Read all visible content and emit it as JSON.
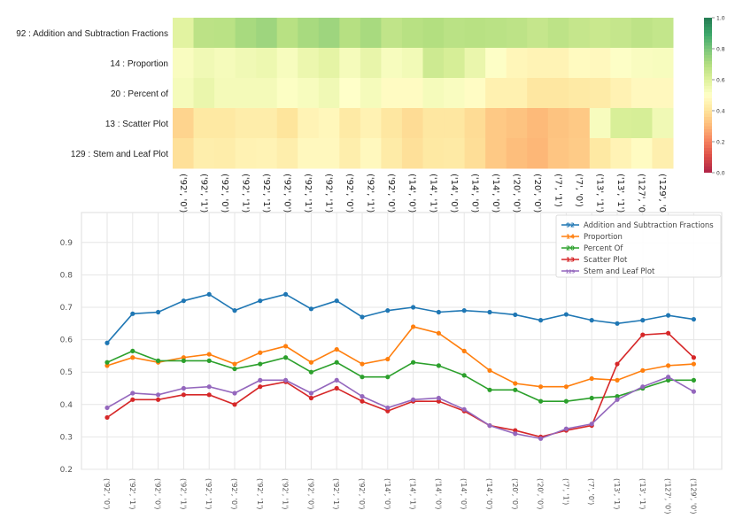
{
  "chart_data": [
    {
      "type": "heatmap",
      "colormap": "RdYlGn",
      "vlim": [
        0.0,
        1.0
      ],
      "colorbar_ticks": [
        "0.0",
        "0.2",
        "0.4",
        "0.6",
        "0.8",
        "1.0"
      ],
      "row_labels": [
        "92 : Addition and Subtraction Fractions",
        "14 : Proportion",
        "20 : Percent of",
        "13 : Scatter Plot",
        "129 : Stem and Leaf Plot"
      ],
      "col_labels": [
        "('92', '0')",
        "('92', '1')",
        "('92', '0')",
        "('92', '1')",
        "('92', '1')",
        "('92', '0')",
        "('92', '1')",
        "('92', '1')",
        "('92', '0')",
        "('92', '1')",
        "('92', '0')",
        "('14', '0')",
        "('14', '1')",
        "('14', '0')",
        "('14', '0')",
        "('14', '0')",
        "('20', '0')",
        "('20', '0')",
        "('7', '1')",
        "('7', '0')",
        "('13', '1')",
        "('13', '1')",
        "('127', '0')",
        "('129', '0')"
      ],
      "values_ref": "same as line chart series values"
    },
    {
      "type": "line",
      "ylim": [
        0.2,
        0.95
      ],
      "yticks": [
        "0.2",
        "0.3",
        "0.4",
        "0.5",
        "0.6",
        "0.7",
        "0.8",
        "0.9"
      ],
      "grid": true,
      "legend": "top-right",
      "categories": [
        "('92', '0')",
        "('92', '1')",
        "('92', '0')",
        "('92', '1')",
        "('92', '1')",
        "('92', '0')",
        "('92', '1')",
        "('92', '1')",
        "('92', '0')",
        "('92', '1')",
        "('92', '0')",
        "('14', '0')",
        "('14', '1')",
        "('14', '0')",
        "('14', '0')",
        "('14', '0')",
        "('20', '0')",
        "('20', '0')",
        "('7', '1')",
        "('7', '0')",
        "('13', '1')",
        "('13', '1')",
        "('127', '0')",
        "('129', '0')"
      ],
      "series": [
        {
          "name": "Addition and Subtraction Fractions",
          "marker": "92",
          "color": "#1f77b4",
          "values": [
            0.59,
            0.68,
            0.685,
            0.72,
            0.74,
            0.69,
            0.72,
            0.74,
            0.695,
            0.72,
            0.67,
            0.69,
            0.7,
            0.685,
            0.69,
            0.685,
            0.677,
            0.66,
            0.678,
            0.66,
            0.65,
            0.66,
            0.675,
            0.663
          ]
        },
        {
          "name": "Proportion",
          "marker": "14",
          "color": "#ff7f0e",
          "values": [
            0.52,
            0.545,
            0.53,
            0.545,
            0.555,
            0.525,
            0.56,
            0.58,
            0.53,
            0.57,
            0.525,
            0.54,
            0.64,
            0.62,
            0.565,
            0.505,
            0.465,
            0.455,
            0.455,
            0.48,
            0.475,
            0.505,
            0.52,
            0.525
          ]
        },
        {
          "name": "Percent Of",
          "marker": "20",
          "color": "#2ca02c",
          "values": [
            0.53,
            0.565,
            0.535,
            0.535,
            0.535,
            0.51,
            0.525,
            0.545,
            0.5,
            0.53,
            0.485,
            0.485,
            0.53,
            0.52,
            0.49,
            0.445,
            0.445,
            0.41,
            0.41,
            0.42,
            0.425,
            0.45,
            0.475,
            0.475
          ]
        },
        {
          "name": "Scatter Plot",
          "marker": "13",
          "color": "#d62728",
          "values": [
            0.36,
            0.415,
            0.415,
            0.43,
            0.43,
            0.4,
            0.455,
            0.47,
            0.42,
            0.45,
            0.41,
            0.38,
            0.41,
            0.41,
            0.38,
            0.335,
            0.32,
            0.3,
            0.32,
            0.335,
            0.525,
            0.615,
            0.62,
            0.545
          ]
        },
        {
          "name": "Stem and Leaf Plot",
          "marker": "129",
          "color": "#9467bd",
          "values": [
            0.39,
            0.435,
            0.43,
            0.45,
            0.455,
            0.435,
            0.475,
            0.475,
            0.435,
            0.475,
            0.425,
            0.39,
            0.415,
            0.42,
            0.385,
            0.335,
            0.31,
            0.295,
            0.325,
            0.34,
            0.415,
            0.455,
            0.485,
            0.44
          ]
        }
      ]
    }
  ]
}
